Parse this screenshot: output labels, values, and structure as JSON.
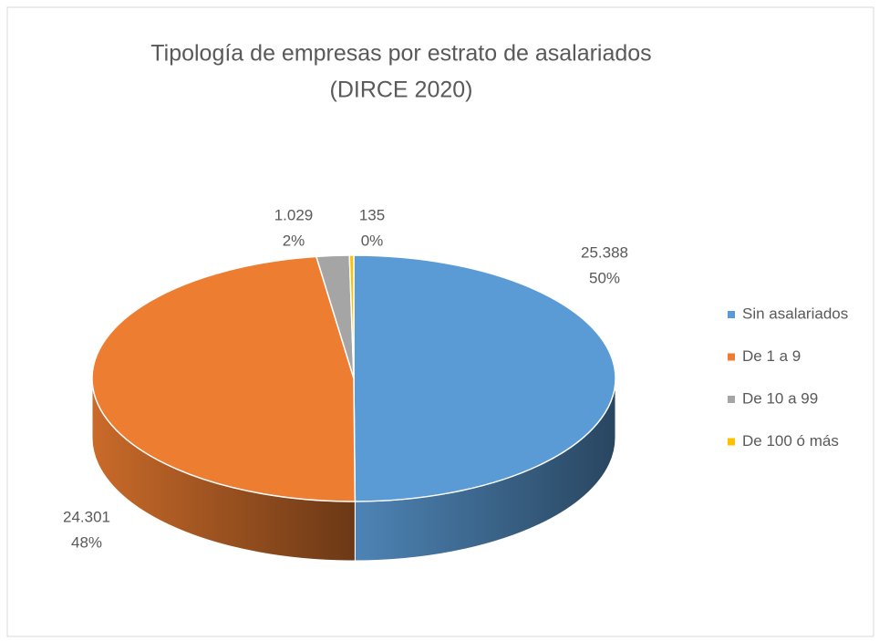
{
  "chart_data": {
    "type": "pie",
    "title": "Tipología de empresas por estrato de asalariados",
    "subtitle": "(DIRCE 2020)",
    "categories": [
      "Sin asalariados",
      "De 1 a 9",
      "De 10 a 99",
      "De 100 ó más"
    ],
    "values": [
      25388,
      24301,
      1029,
      135
    ],
    "value_labels": [
      "25.388",
      "24.301",
      "1.029",
      "135"
    ],
    "percent_labels": [
      "50%",
      "48%",
      "2%",
      "0%"
    ],
    "colors": [
      "#5b9bd5",
      "#ed7d31",
      "#a5a5a5",
      "#ffc000"
    ],
    "legend": "right"
  }
}
